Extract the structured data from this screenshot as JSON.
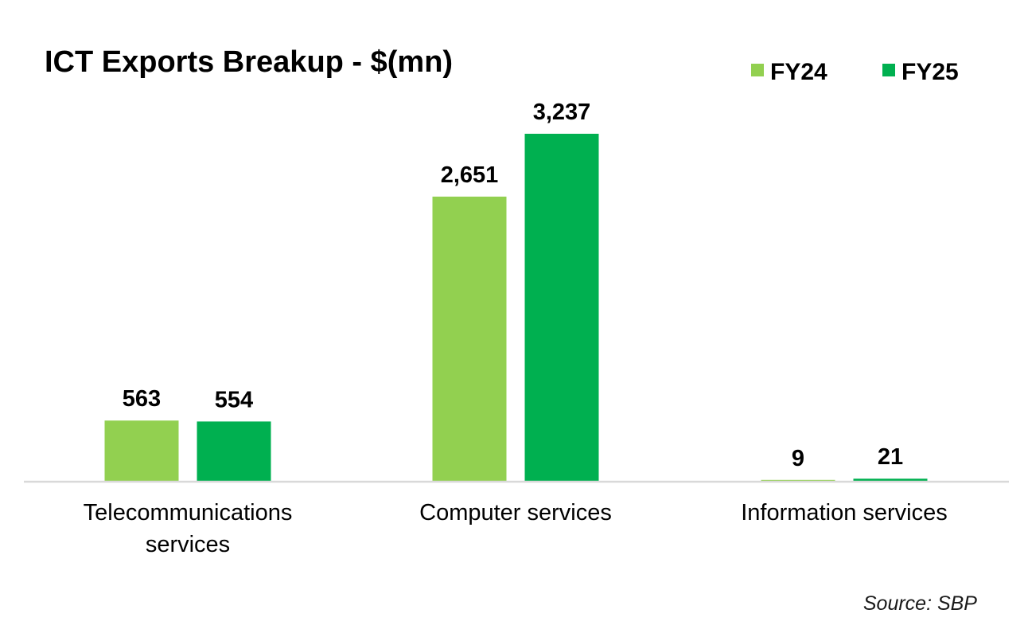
{
  "chart_data": {
    "type": "bar",
    "title": "ICT Exports Breakup - $(mn)",
    "categories": [
      [
        "Telecommunications",
        "services"
      ],
      [
        "Computer services"
      ],
      [
        "Information services"
      ]
    ],
    "series": [
      {
        "name": "FY24",
        "color": "#92d050",
        "values": [
          563,
          2651,
          9
        ]
      },
      {
        "name": "FY25",
        "color": "#00b050",
        "values": [
          554,
          3237,
          21
        ]
      }
    ],
    "data_labels": [
      [
        "563",
        "2,651",
        "9"
      ],
      [
        "554",
        "3,237",
        "21"
      ]
    ],
    "ylim": [
      0,
      3237
    ],
    "grid": false,
    "y_axis_visible": false,
    "legend_position": "top-right",
    "source": "Source: SBP",
    "axis_color": "#d9d9d9"
  }
}
